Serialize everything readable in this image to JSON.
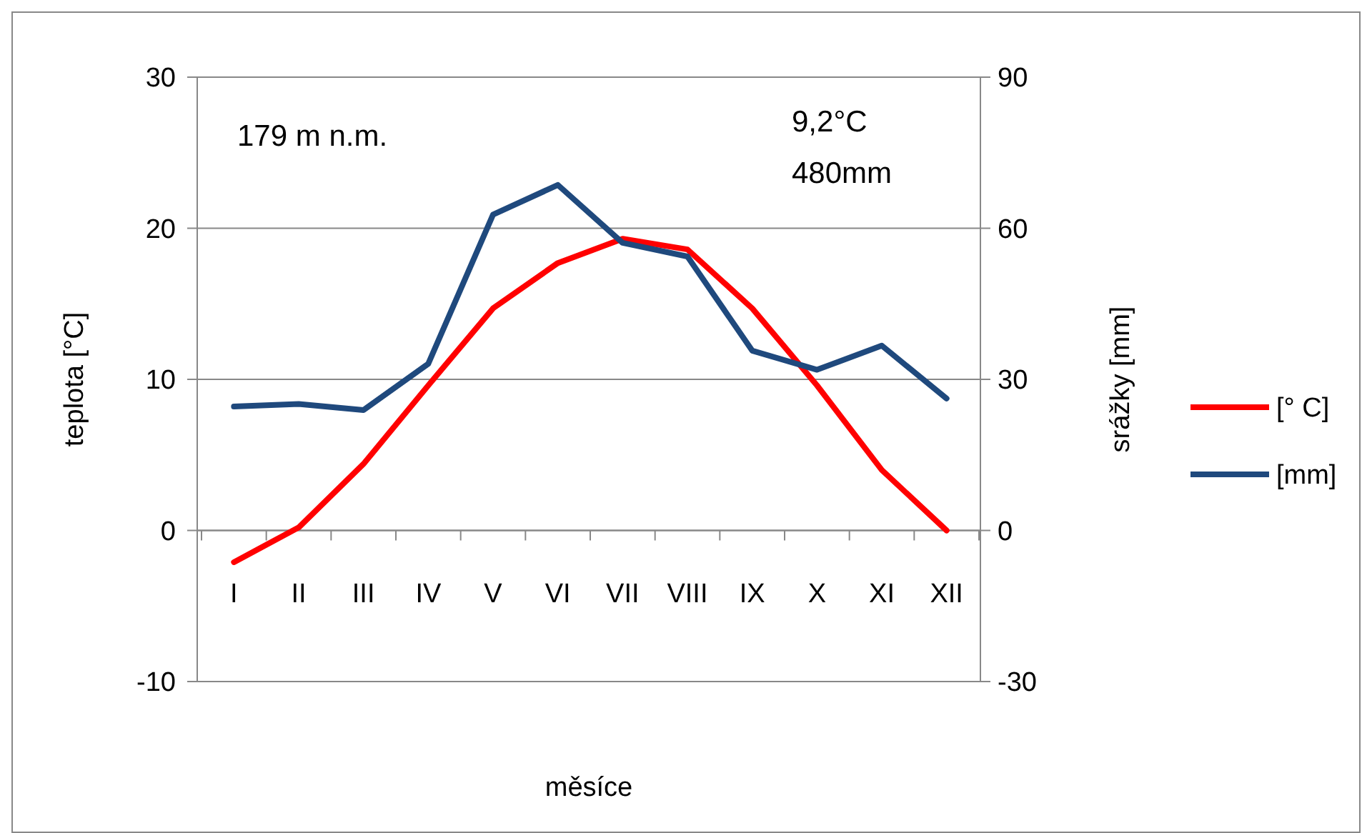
{
  "chart_data": {
    "type": "line",
    "xlabel": "měsíce",
    "ylabel": "teplota [°C]",
    "y2label": "srážky [mm]",
    "categories": [
      "I",
      "II",
      "III",
      "IV",
      "V",
      "VI",
      "VII",
      "VIII",
      "IX",
      "X",
      "XI",
      "XII"
    ],
    "series": [
      {
        "name": "[° C]",
        "color": "#ff0000",
        "values": [
          -2.1,
          0.2,
          4.4,
          9.6,
          14.7,
          17.7,
          19.3,
          18.6,
          14.7,
          9.6,
          4.0,
          0.0
        ]
      },
      {
        "name": "[mm]",
        "color": "#1f497d",
        "axis": "y2",
        "values": [
          24.6,
          25.1,
          23.9,
          33.1,
          62.7,
          68.6,
          57.1,
          54.4,
          35.7,
          31.9,
          36.7,
          26.2
        ]
      }
    ],
    "ylim": [
      -10,
      30
    ],
    "yticks": [
      -10,
      0,
      10,
      20,
      30
    ],
    "y2lim": [
      -30,
      90
    ],
    "y2ticks": [
      -30,
      0,
      30,
      60,
      90
    ],
    "grid": "y",
    "legend": "right",
    "marker": "none",
    "line_style": "solid",
    "annotations": [
      "179 m n.m.",
      "9,2°C",
      "480mm"
    ]
  }
}
